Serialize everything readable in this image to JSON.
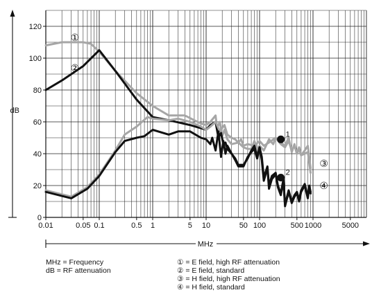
{
  "chart_data": {
    "type": "line",
    "title": "",
    "xlabel": "MHz",
    "ylabel": "dB",
    "x_scale": "log",
    "xlim": [
      0.01,
      10000
    ],
    "ylim": [
      0,
      130
    ],
    "grid": true,
    "x_ticks": [
      {
        "value": 0.01,
        "label": "0.01"
      },
      {
        "value": 0.05,
        "label": "0.05"
      },
      {
        "value": 0.1,
        "label": "0.1"
      },
      {
        "value": 0.5,
        "label": "0.5"
      },
      {
        "value": 1,
        "label": "1"
      },
      {
        "value": 5,
        "label": "5"
      },
      {
        "value": 10,
        "label": "10"
      },
      {
        "value": 50,
        "label": "50"
      },
      {
        "value": 100,
        "label": "100"
      },
      {
        "value": 500,
        "label": "500"
      },
      {
        "value": 1000,
        "label": "1000"
      },
      {
        "value": 5000,
        "label": "5000"
      }
    ],
    "y_ticks": [
      {
        "value": 0,
        "label": "0"
      },
      {
        "value": 20,
        "label": "20"
      },
      {
        "value": 40,
        "label": "40"
      },
      {
        "value": 60,
        "label": "60"
      },
      {
        "value": 80,
        "label": "80"
      },
      {
        "value": 100,
        "label": "100"
      },
      {
        "value": 120,
        "label": "120"
      }
    ],
    "colors": {
      "gray": "#a6a6a6",
      "black": "#111111",
      "grid": "#222222"
    },
    "series": [
      {
        "marker": "①",
        "color": "gray",
        "points": [
          [
            0.01,
            108
          ],
          [
            0.02,
            110
          ],
          [
            0.05,
            110
          ],
          [
            0.07,
            109
          ],
          [
            0.1,
            104
          ],
          [
            0.2,
            92
          ],
          [
            0.5,
            78
          ],
          [
            1,
            70
          ],
          [
            2,
            64
          ],
          [
            4,
            64
          ],
          [
            6,
            61
          ],
          [
            8,
            59
          ],
          [
            10,
            58
          ],
          [
            12,
            60
          ],
          [
            15,
            64
          ],
          [
            16,
            56
          ],
          [
            18,
            60
          ],
          [
            20,
            51
          ],
          [
            22,
            55
          ],
          [
            25,
            49
          ],
          [
            30,
            46
          ],
          [
            40,
            47
          ],
          [
            50,
            44
          ],
          [
            60,
            43
          ],
          [
            70,
            43
          ],
          [
            80,
            48
          ],
          [
            90,
            43
          ],
          [
            100,
            45
          ],
          [
            120,
            42
          ],
          [
            150,
            49
          ],
          [
            180,
            46
          ],
          [
            200,
            50
          ],
          [
            250,
            47
          ],
          [
            300,
            45
          ],
          [
            350,
            50
          ],
          [
            400,
            41
          ],
          [
            450,
            46
          ],
          [
            500,
            40
          ],
          [
            550,
            44
          ],
          [
            600,
            39
          ],
          [
            700,
            42
          ],
          [
            800,
            45
          ],
          [
            900,
            31
          ]
        ]
      },
      {
        "marker": "②",
        "color": "black",
        "points": [
          [
            0.01,
            80
          ],
          [
            0.02,
            86
          ],
          [
            0.05,
            95
          ],
          [
            0.1,
            105
          ],
          [
            0.2,
            92
          ],
          [
            0.5,
            74
          ],
          [
            1,
            63
          ],
          [
            2,
            61
          ],
          [
            5,
            58
          ],
          [
            8,
            56
          ],
          [
            10,
            55
          ],
          [
            12,
            58
          ],
          [
            15,
            60
          ],
          [
            17,
            50
          ],
          [
            19,
            53
          ],
          [
            21,
            46
          ],
          [
            23,
            47
          ],
          [
            25,
            43
          ],
          [
            30,
            40
          ],
          [
            35,
            36
          ],
          [
            40,
            32
          ],
          [
            50,
            32
          ],
          [
            60,
            38
          ],
          [
            70,
            41
          ],
          [
            80,
            43
          ],
          [
            90,
            37
          ],
          [
            100,
            44
          ],
          [
            110,
            38
          ],
          [
            120,
            25
          ],
          [
            140,
            32
          ],
          [
            150,
            20
          ],
          [
            170,
            26
          ],
          [
            200,
            28
          ],
          [
            220,
            20
          ],
          [
            250,
            15
          ],
          [
            280,
            24
          ],
          [
            300,
            8
          ],
          [
            350,
            17
          ],
          [
            400,
            10
          ],
          [
            450,
            14
          ],
          [
            500,
            16
          ],
          [
            550,
            11
          ],
          [
            600,
            17
          ],
          [
            700,
            21
          ],
          [
            800,
            13
          ],
          [
            850,
            20
          ],
          [
            900,
            16
          ]
        ]
      },
      {
        "marker": "③",
        "color": "gray",
        "points": [
          [
            0.01,
            17
          ],
          [
            0.03,
            13
          ],
          [
            0.06,
            19
          ],
          [
            0.1,
            27
          ],
          [
            0.2,
            42
          ],
          [
            0.3,
            52
          ],
          [
            0.5,
            57
          ],
          [
            0.8,
            63
          ],
          [
            1,
            62
          ],
          [
            2,
            61
          ],
          [
            3,
            62
          ],
          [
            5,
            60
          ],
          [
            8,
            57
          ],
          [
            10,
            55
          ],
          [
            12,
            57
          ],
          [
            15,
            60
          ],
          [
            18,
            54
          ],
          [
            22,
            58
          ],
          [
            25,
            52
          ],
          [
            30,
            50
          ],
          [
            35,
            49
          ],
          [
            40,
            47
          ],
          [
            45,
            49
          ],
          [
            50,
            45
          ],
          [
            60,
            46
          ],
          [
            80,
            45
          ],
          [
            100,
            48
          ],
          [
            120,
            45
          ],
          [
            150,
            47
          ],
          [
            200,
            50
          ],
          [
            250,
            46
          ],
          [
            300,
            44
          ],
          [
            350,
            48
          ],
          [
            400,
            42
          ],
          [
            450,
            45
          ],
          [
            500,
            40
          ],
          [
            550,
            43
          ],
          [
            600,
            39
          ],
          [
            700,
            40
          ],
          [
            800,
            41
          ],
          [
            900,
            28
          ]
        ]
      },
      {
        "marker": "④",
        "color": "black",
        "points": [
          [
            0.01,
            16
          ],
          [
            0.03,
            12
          ],
          [
            0.06,
            18
          ],
          [
            0.1,
            26
          ],
          [
            0.2,
            41
          ],
          [
            0.3,
            48
          ],
          [
            0.5,
            50
          ],
          [
            0.7,
            51
          ],
          [
            1,
            55
          ],
          [
            2,
            52
          ],
          [
            3,
            54
          ],
          [
            5,
            54
          ],
          [
            8,
            50
          ],
          [
            10,
            49
          ],
          [
            12,
            46
          ],
          [
            13,
            50
          ],
          [
            15,
            42
          ],
          [
            17,
            54
          ],
          [
            19,
            38
          ],
          [
            21,
            48
          ],
          [
            23,
            40
          ],
          [
            25,
            45
          ],
          [
            30,
            40
          ],
          [
            35,
            37
          ],
          [
            40,
            33
          ],
          [
            50,
            33
          ],
          [
            60,
            37
          ],
          [
            70,
            42
          ],
          [
            80,
            45
          ],
          [
            90,
            38
          ],
          [
            100,
            44
          ],
          [
            110,
            36
          ],
          [
            120,
            23
          ],
          [
            140,
            31
          ],
          [
            150,
            18
          ],
          [
            170,
            24
          ],
          [
            200,
            27
          ],
          [
            220,
            19
          ],
          [
            250,
            14
          ],
          [
            280,
            23
          ],
          [
            300,
            7
          ],
          [
            350,
            16
          ],
          [
            400,
            9
          ],
          [
            450,
            13
          ],
          [
            500,
            15
          ],
          [
            550,
            10
          ],
          [
            600,
            16
          ],
          [
            700,
            20
          ],
          [
            800,
            12
          ],
          [
            850,
            19
          ],
          [
            900,
            15
          ]
        ]
      }
    ],
    "annotations": [
      {
        "label": "①",
        "x": 0.035,
        "y": 113
      },
      {
        "label": "②",
        "x": 0.035,
        "y": 94
      },
      {
        "label": "③",
        "x": 1600,
        "y": 34
      },
      {
        "label": "④",
        "x": 1600,
        "y": 20
      }
    ],
    "dots": [
      {
        "label": "1",
        "x": 250,
        "y": 49,
        "color": "black"
      },
      {
        "label": "2",
        "x": 250,
        "y": 25,
        "color": "black"
      }
    ],
    "legend_left": [
      "MHz = Frequency",
      "dB = RF attenuation"
    ],
    "legend_right": [
      "① = E field, high RF attenuation",
      "② = E field, standard",
      "③ = H field, high RF attenuation",
      "④ = H field, standard"
    ]
  }
}
